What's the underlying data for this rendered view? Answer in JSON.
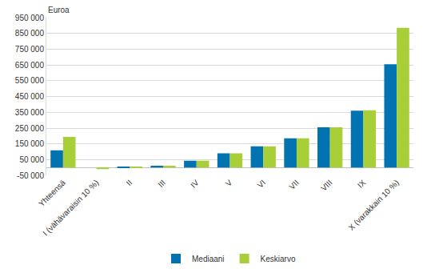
{
  "chart_data": {
    "type": "bar",
    "ylabel": "Euroa",
    "categories": [
      "Yhteensä",
      "I (vähävaraisin 10 %)",
      "II",
      "III",
      "IV",
      "V",
      "VI",
      "VII",
      "VIII",
      "IX",
      "X (varakkain 10 %)"
    ],
    "series": [
      {
        "name": "Mediaani",
        "color": "#0073b0",
        "values": [
          110000,
          0,
          5000,
          12000,
          43000,
          90000,
          135000,
          185000,
          255000,
          360000,
          655000
        ]
      },
      {
        "name": "Keskiarvo",
        "color": "#a9cf38",
        "values": [
          195000,
          -10000,
          5000,
          12000,
          43000,
          90000,
          135000,
          185000,
          255000,
          363000,
          885000
        ]
      }
    ],
    "ylim": [
      -50000,
      950000
    ],
    "yticks": [
      {
        "value": -50000,
        "label": "-50 000"
      },
      {
        "value": 50000,
        "label": "50 000"
      },
      {
        "value": 150000,
        "label": "150 000"
      },
      {
        "value": 250000,
        "label": "250 000"
      },
      {
        "value": 350000,
        "label": "350 000"
      },
      {
        "value": 450000,
        "label": "450 000"
      },
      {
        "value": 550000,
        "label": "550 000"
      },
      {
        "value": 650000,
        "label": "650 000"
      },
      {
        "value": 750000,
        "label": "750 000"
      },
      {
        "value": 850000,
        "label": "850 000"
      },
      {
        "value": 950000,
        "label": "950 000"
      }
    ],
    "grid": true,
    "legend": "bottom"
  }
}
